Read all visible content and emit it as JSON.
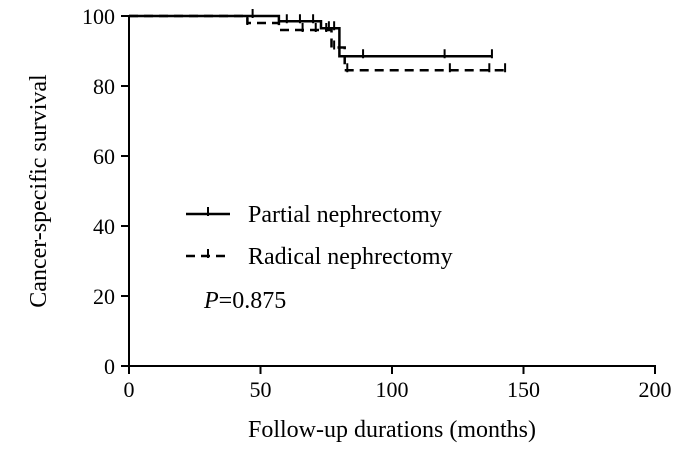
{
  "chart_data": {
    "type": "line",
    "subtype": "kaplan-meier",
    "xlabel": "Follow-up durations (months)",
    "ylabel": "Cancer-specific survival",
    "xlim": [
      0,
      200
    ],
    "ylim": [
      0,
      100
    ],
    "xticks": [
      "0",
      "50",
      "100",
      "150",
      "200"
    ],
    "yticks": [
      "0",
      "20",
      "40",
      "60",
      "80",
      "100"
    ],
    "legend_position": "center-left",
    "annotation": {
      "italic": "P",
      "rest": "=0.875"
    },
    "series": [
      {
        "name": "Partial nephrectomy",
        "line_style": "solid",
        "color": "#000000",
        "steps": [
          [
            0,
            100
          ],
          [
            57,
            100
          ],
          [
            57,
            98.5
          ],
          [
            73,
            98.5
          ],
          [
            73,
            96.5
          ],
          [
            80,
            96.5
          ],
          [
            80,
            88.5
          ],
          [
            138,
            88.5
          ]
        ],
        "censored": [
          [
            47,
            100
          ],
          [
            60,
            98.5
          ],
          [
            65,
            98.5
          ],
          [
            70,
            98.5
          ],
          [
            76,
            96.5
          ],
          [
            78,
            96.5
          ],
          [
            89,
            88.5
          ],
          [
            120,
            88.5
          ],
          [
            138,
            88.5
          ]
        ]
      },
      {
        "name": "Radical nephrectomy",
        "line_style": "dashed",
        "color": "#000000",
        "steps": [
          [
            0,
            100
          ],
          [
            45,
            100
          ],
          [
            45,
            98
          ],
          [
            57,
            98
          ],
          [
            57,
            96
          ],
          [
            77,
            96
          ],
          [
            77,
            91
          ],
          [
            82,
            91
          ],
          [
            82,
            84.5
          ],
          [
            143,
            84.5
          ]
        ],
        "censored": [
          [
            45,
            98
          ],
          [
            66,
            96
          ],
          [
            71,
            96
          ],
          [
            75,
            96
          ],
          [
            78,
            91
          ],
          [
            83,
            84.5
          ],
          [
            122,
            84.5
          ],
          [
            137,
            84.5
          ],
          [
            143,
            84.5
          ]
        ]
      }
    ]
  }
}
